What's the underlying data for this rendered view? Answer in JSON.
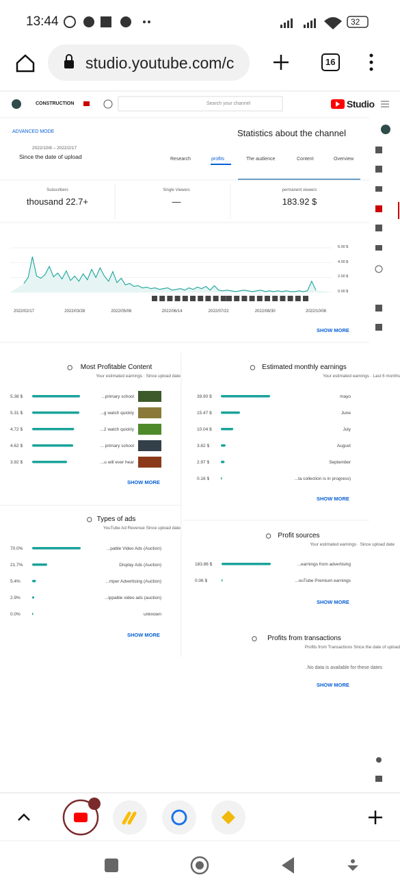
{
  "status": {
    "time": "13:44",
    "battery": "32"
  },
  "browser": {
    "url": "studio.youtube.com/c",
    "tabs": "16"
  },
  "header": {
    "channel": "CONSTRUCTION",
    "search": "Search your channel",
    "logo": "Studio"
  },
  "mode": "ADVANCED MODE",
  "date_range": "2022/10/8 – 2022/2/17",
  "period": "Since the date of upload",
  "title": "Statistics about the channel",
  "tabs": [
    "Research",
    "profits",
    "The audience",
    "Content",
    "Overview"
  ],
  "stats": [
    {
      "label": "Subscribers",
      "value": "thousand 22.7+"
    },
    {
      "label": "Single Viewers",
      "value": "—"
    },
    {
      "label": "permanent viewers",
      "value": "183.92 $"
    }
  ],
  "chart_data": {
    "type": "line",
    "color": "#1aa39a",
    "categories": [
      "2022/02/17",
      null,
      null,
      null,
      null,
      null,
      null,
      null,
      null,
      null,
      null,
      null,
      "2022/03/28",
      null,
      null,
      null,
      null,
      null,
      null,
      null,
      null,
      null,
      null,
      "2022/05/06",
      null,
      null,
      null,
      null,
      null,
      null,
      null,
      null,
      null,
      null,
      null,
      "2022/06/14",
      null,
      null,
      null,
      null,
      null,
      null,
      null,
      null,
      null,
      null,
      "2022/07/22",
      null,
      null,
      null,
      null,
      null,
      null,
      null,
      null,
      null,
      null,
      "2022/08/30",
      null,
      null,
      null,
      null,
      null,
      null,
      null,
      null,
      null,
      null,
      null,
      "2022/10/08"
    ],
    "values": [
      1.2,
      2.0,
      4.8,
      2.2,
      1.9,
      2.4,
      3.5,
      2.1,
      2.6,
      1.8,
      2.9,
      1.6,
      2.2,
      1.5,
      2.5,
      1.7,
      3.1,
      2.0,
      3.3,
      2.2,
      1.5,
      2.8,
      1.3,
      1.9,
      1.0,
      1.2,
      0.8,
      0.9,
      0.6,
      0.7,
      0.5,
      0.6,
      0.4,
      0.5,
      0.6,
      0.3,
      0.4,
      0.5,
      0.3,
      0.6,
      0.4,
      0.7,
      0.5,
      0.8,
      0.3,
      0.9,
      0.3,
      0.2,
      0.3,
      0.2,
      0.1,
      0.2,
      0.3,
      0.2,
      0.1,
      0.2,
      0.3,
      0.1,
      0.2,
      0.1,
      0.2,
      0.1,
      0.2,
      0.1,
      0.1,
      0.2,
      0.1,
      0.2,
      1.5,
      0.3
    ],
    "ylim": [
      0,
      6
    ],
    "yticks": [
      {
        "value": 0,
        "label": "0.00 $"
      },
      {
        "value": 2,
        "label": "2.00 $"
      },
      {
        "value": 4,
        "label": "4.00 $"
      },
      {
        "value": 6,
        "label": "6.00 $"
      }
    ],
    "more": "SHOW MORE"
  },
  "panels": [
    {
      "title": "Most Profitable Content",
      "subtitle": "Your estimated earnings · Since upload date",
      "more": "SHOW MORE",
      "rows": [
        {
          "value": 5.38,
          "label": "5.38 $",
          "name": "...primary school"
        },
        {
          "value": 5.31,
          "label": "5.31 $",
          "name": "...g watch quickly"
        },
        {
          "value": 4.72,
          "label": "4.72 $",
          "name": "...2 watch quickly"
        },
        {
          "value": 4.62,
          "label": "4.62 $",
          "name": "... primary school"
        },
        {
          "value": 3.92,
          "label": "3.92 $",
          "name": "...u will ever hear"
        }
      ]
    },
    {
      "title": "Estimated monthly earnings",
      "subtitle": "Your estimated earnings · Last 6 months",
      "more": "SHOW MORE",
      "rows": [
        {
          "value": 39.9,
          "label": "39.90 $",
          "name": "mayo"
        },
        {
          "value": 15.47,
          "label": "15.47 $",
          "name": "June"
        },
        {
          "value": 10.04,
          "label": "10.04 $",
          "name": "July"
        },
        {
          "value": 3.82,
          "label": "3.82 $",
          "name": "August"
        },
        {
          "value": 2.97,
          "label": "2.97 $",
          "name": "September"
        },
        {
          "value": 0.16,
          "label": "0.16 $",
          "name": "...ta collection is in progress)"
        }
      ]
    },
    {
      "title": "Types of ads",
      "subtitle": "YouTube Ad Revenue Since upload date",
      "more": "SHOW MORE",
      "rows": [
        {
          "value": 70.0,
          "label": "70.0%",
          "name": "...pable Video Ads (Auction)"
        },
        {
          "value": 21.7,
          "label": "21.7%",
          "name": "Display Ads (Auction)"
        },
        {
          "value": 5.4,
          "label": "5.4%",
          "name": "...mper Advertising (Auction)"
        },
        {
          "value": 2.9,
          "label": "2.9%",
          "name": "...ippable video ads (auction)"
        },
        {
          "value": 0.0,
          "label": "0.0%",
          "name": "unknown"
        }
      ]
    },
    {
      "title": "Profit sources",
      "subtitle": "Your estimated earnings · Since upload date",
      "more": "SHOW MORE",
      "rows": [
        {
          "value": 183.86,
          "label": "183.86 $",
          "name": "...earnings from advertising"
        },
        {
          "value": 0.06,
          "label": "0.06 $",
          "name": "...ouTube Premium earnings"
        }
      ]
    },
    {
      "title": "Profits from transactions",
      "subtitle": "Profits from Transactions Since the date of upload",
      "more": "SHOW MORE",
      "note": ".No data is available for these dates",
      "rows": []
    }
  ]
}
